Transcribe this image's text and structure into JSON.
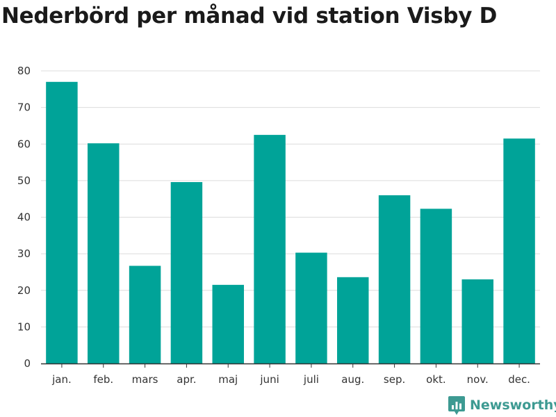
{
  "chart_data": {
    "type": "bar",
    "title": "Nederbörd per månad vid station Visby D",
    "categories": [
      "jan.",
      "feb.",
      "mars",
      "apr.",
      "maj",
      "juni",
      "juli",
      "aug.",
      "sep.",
      "okt.",
      "nov.",
      "dec."
    ],
    "values": [
      77.0,
      60.2,
      26.7,
      49.6,
      21.5,
      62.5,
      30.3,
      23.6,
      46.0,
      42.3,
      23.0,
      61.5
    ],
    "yticks": [
      0,
      10,
      20,
      30,
      40,
      50,
      60,
      70,
      80
    ],
    "ylim": [
      0,
      80
    ],
    "xlabel": "",
    "ylabel": "",
    "grid": true,
    "bar_color": "#00a398"
  },
  "brand": {
    "name": "Newsworthy",
    "icon": "newsworthy-logo-icon",
    "color": "#3d9a92"
  }
}
